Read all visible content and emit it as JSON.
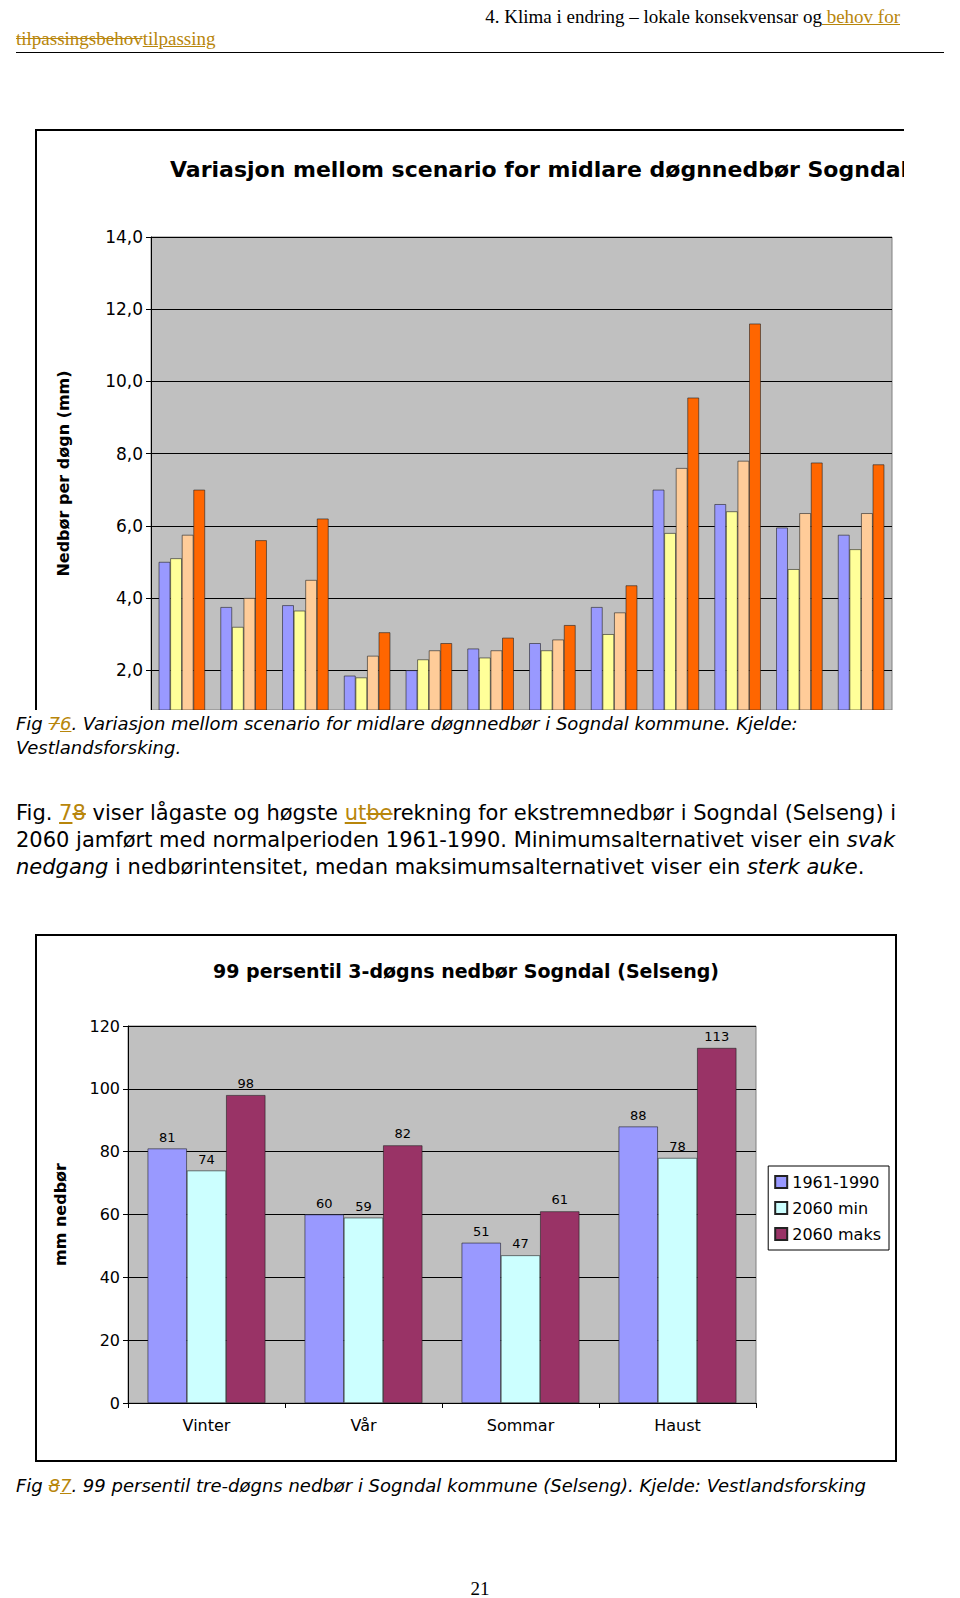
{
  "header": {
    "line1": [
      {
        "text": "4. Klima i endring – lokale konsekvensar og"
      },
      {
        "text": " behov for ",
        "inserted": true
      }
    ],
    "line2": [
      {
        "text": "tilpassingsbehov",
        "deleted": true
      },
      {
        "text": "tilpassing",
        "inserted": true
      }
    ]
  },
  "captions": [
    [
      {
        "text": "Fig "
      },
      {
        "text": "7",
        "deleted": true
      },
      {
        "text": "6",
        "inserted": true
      },
      {
        "text": ". Variasjon mellom scenario for midlare døgnnedbør i Sogndal kommune. Kjelde: Vestlandsforsking."
      }
    ],
    [
      {
        "text": "Fig "
      },
      {
        "text": "8",
        "deleted": true
      },
      {
        "text": "7",
        "inserted": true
      },
      {
        "text": ". 99 persentil tre-døgns nedbør i Sogndal kommune (Selseng). Kjelde: Vestlandsforsking"
      }
    ]
  ],
  "paragraph": [
    {
      "text": "Fig. "
    },
    {
      "text": "7",
      "inserted": true
    },
    {
      "text": "8",
      "deleted": true
    },
    {
      "text": " viser lågaste og høgste "
    },
    {
      "text": "ut",
      "inserted": true
    },
    {
      "text": "be",
      "deleted": true
    },
    {
      "text": "rekning for ekstremnedbør i Sogndal (Selseng) i 2060 jamført med normalperioden 1961-1990. Minimumsalternativet viser ein "
    },
    {
      "text": "svak nedgang",
      "italic": true
    },
    {
      "text": " i nedbørintensitet, medan maksimumsalternativet viser ein "
    },
    {
      "text": "sterk auke",
      "italic": true
    },
    {
      "text": "."
    }
  ],
  "page_number": "21",
  "chart_data": [
    {
      "type": "bar",
      "title": "Variasjon mellom scenario for midlare døgnnedbør Sogndal",
      "ylabel": "Nedbør per døgn (mm)",
      "categories": [
        null,
        null,
        null,
        null,
        null,
        null,
        null,
        null,
        null,
        null,
        null,
        null
      ],
      "series": [
        {
          "color": "#9999ff",
          "values": [
            5.0,
            3.75,
            3.8,
            1.85,
            2.0,
            2.6,
            2.75,
            3.75,
            7.0,
            6.6,
            5.95,
            5.75
          ]
        },
        {
          "color": "#ffff99",
          "values": [
            5.1,
            3.2,
            3.65,
            1.8,
            2.3,
            2.35,
            2.55,
            3.0,
            5.8,
            6.4,
            4.8,
            5.35
          ]
        },
        {
          "color": "#ffcc99",
          "values": [
            5.75,
            4.0,
            4.5,
            2.4,
            2.55,
            2.55,
            2.85,
            3.6,
            7.6,
            7.8,
            6.35,
            6.35
          ]
        },
        {
          "color": "#ff6600",
          "values": [
            7.0,
            5.6,
            6.2,
            3.05,
            2.75,
            2.9,
            3.25,
            4.35,
            9.55,
            11.6,
            7.75,
            7.7
          ]
        }
      ],
      "ylim": [
        0.9,
        14.0
      ],
      "yticks": [
        {
          "value": 2,
          "label": "2,0"
        },
        {
          "value": 4,
          "label": "4,0"
        },
        {
          "value": 6,
          "label": "6,0"
        },
        {
          "value": 8,
          "label": "8,0"
        },
        {
          "value": 10,
          "label": "10,0"
        },
        {
          "value": 12,
          "label": "12,0"
        },
        {
          "value": 14,
          "label": "14,0"
        }
      ],
      "grid": true,
      "tick_labels": "y"
    },
    {
      "type": "bar",
      "title": "99 persentil 3-døgns nedbør Sogndal (Selseng)",
      "ylabel": "mm nedbør",
      "categories": [
        "Vinter",
        "Vår",
        "Sommar",
        "Haust"
      ],
      "series": [
        {
          "name": "1961-1990",
          "color": "#9999ff",
          "values": [
            81,
            60,
            51,
            88
          ]
        },
        {
          "name": "2060 min",
          "color": "#ccffff",
          "values": [
            74,
            59,
            47,
            78
          ]
        },
        {
          "name": "2060 maks",
          "color": "#993366",
          "values": [
            98,
            82,
            61,
            113
          ]
        }
      ],
      "ylim": [
        0,
        120
      ],
      "yticks": [
        0,
        20,
        40,
        60,
        80,
        100,
        120
      ],
      "grid": true,
      "legend": "right",
      "data_labels": true
    }
  ]
}
